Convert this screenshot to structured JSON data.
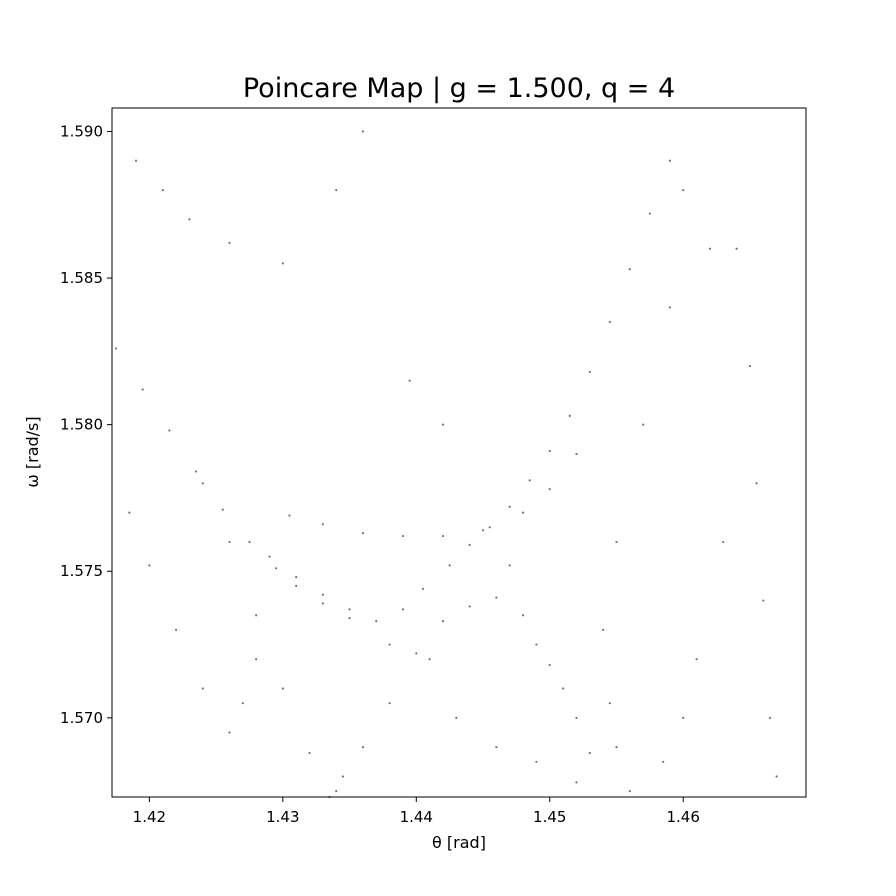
{
  "chart_data": {
    "type": "scatter",
    "title": "Poincare Map | g = 1.500, q = 4",
    "xlabel": "θ [rad]",
    "ylabel": "ω [rad/s]",
    "xlim": [
      1.4172,
      1.4692
    ],
    "ylim": [
      1.5673,
      1.5908
    ],
    "x_ticks": [
      1.42,
      1.43,
      1.44,
      1.45,
      1.46
    ],
    "x_tick_labels": [
      "1.42",
      "1.43",
      "1.44",
      "1.45",
      "1.46"
    ],
    "y_ticks": [
      1.57,
      1.575,
      1.58,
      1.585,
      1.59
    ],
    "y_tick_labels": [
      "1.570",
      "1.575",
      "1.580",
      "1.585",
      "1.590"
    ],
    "grid": false,
    "marker_color": "#000000",
    "series": [
      {
        "values": [
          [
            1.4175,
            1.5826
          ],
          [
            1.4195,
            1.5812
          ],
          [
            1.4215,
            1.5798
          ],
          [
            1.4235,
            1.5784
          ],
          [
            1.4255,
            1.5771
          ],
          [
            1.4275,
            1.576
          ],
          [
            1.4295,
            1.5751
          ],
          [
            1.431,
            1.5745
          ],
          [
            1.433,
            1.5739
          ],
          [
            1.435,
            1.5734
          ],
          [
            1.437,
            1.5733
          ],
          [
            1.439,
            1.5737
          ],
          [
            1.4405,
            1.5744
          ],
          [
            1.4425,
            1.5752
          ],
          [
            1.444,
            1.5759
          ],
          [
            1.4455,
            1.5765
          ],
          [
            1.447,
            1.5772
          ],
          [
            1.4485,
            1.5781
          ],
          [
            1.45,
            1.5791
          ],
          [
            1.4515,
            1.5803
          ],
          [
            1.453,
            1.5818
          ],
          [
            1.4545,
            1.5835
          ],
          [
            1.456,
            1.5853
          ],
          [
            1.4575,
            1.5872
          ],
          [
            1.459,
            1.589
          ],
          [
            1.4305,
            1.5769
          ],
          [
            1.433,
            1.5766
          ],
          [
            1.436,
            1.5763
          ],
          [
            1.439,
            1.5762
          ],
          [
            1.442,
            1.5762
          ],
          [
            1.445,
            1.5764
          ],
          [
            1.448,
            1.577
          ],
          [
            1.45,
            1.5778
          ],
          [
            1.452,
            1.579
          ],
          [
            1.429,
            1.5755
          ],
          [
            1.431,
            1.5748
          ],
          [
            1.433,
            1.5742
          ],
          [
            1.435,
            1.5737
          ],
          [
            1.447,
            1.5752
          ],
          [
            1.448,
            1.5735
          ],
          [
            1.45,
            1.5718
          ],
          [
            1.452,
            1.57
          ],
          [
            1.453,
            1.5688
          ],
          [
            1.442,
            1.5733
          ],
          [
            1.441,
            1.572
          ],
          [
            1.438,
            1.5705
          ],
          [
            1.436,
            1.569
          ],
          [
            1.4345,
            1.568
          ],
          [
            1.4335,
            1.5673
          ],
          [
            1.424,
            1.578
          ],
          [
            1.426,
            1.576
          ],
          [
            1.428,
            1.5735
          ],
          [
            1.43,
            1.571
          ],
          [
            1.432,
            1.5688
          ],
          [
            1.434,
            1.5675
          ],
          [
            1.46,
            1.588
          ],
          [
            1.462,
            1.586
          ],
          [
            1.459,
            1.584
          ],
          [
            1.457,
            1.58
          ],
          [
            1.455,
            1.576
          ],
          [
            1.454,
            1.573
          ],
          [
            1.4545,
            1.5705
          ],
          [
            1.455,
            1.569
          ],
          [
            1.438,
            1.5725
          ],
          [
            1.44,
            1.5722
          ],
          [
            1.444,
            1.5738
          ],
          [
            1.446,
            1.5741
          ],
          [
            1.449,
            1.5725
          ],
          [
            1.451,
            1.571
          ],
          [
            1.443,
            1.57
          ],
          [
            1.446,
            1.569
          ],
          [
            1.449,
            1.5685
          ],
          [
            1.452,
            1.5678
          ],
          [
            1.428,
            1.572
          ],
          [
            1.427,
            1.5705
          ],
          [
            1.426,
            1.5695
          ],
          [
            1.424,
            1.571
          ],
          [
            1.422,
            1.573
          ],
          [
            1.42,
            1.5752
          ],
          [
            1.4185,
            1.577
          ],
          [
            1.464,
            1.586
          ],
          [
            1.465,
            1.582
          ],
          [
            1.4655,
            1.578
          ],
          [
            1.466,
            1.574
          ],
          [
            1.4665,
            1.57
          ],
          [
            1.467,
            1.568
          ],
          [
            1.463,
            1.576
          ],
          [
            1.461,
            1.572
          ],
          [
            1.46,
            1.57
          ],
          [
            1.4585,
            1.5685
          ],
          [
            1.456,
            1.5675
          ],
          [
            1.419,
            1.589
          ],
          [
            1.421,
            1.588
          ],
          [
            1.423,
            1.587
          ],
          [
            1.426,
            1.5862
          ],
          [
            1.43,
            1.5855
          ],
          [
            1.434,
            1.588
          ],
          [
            1.436,
            1.59
          ],
          [
            1.4395,
            1.5815
          ],
          [
            1.442,
            1.58
          ]
        ]
      }
    ]
  }
}
